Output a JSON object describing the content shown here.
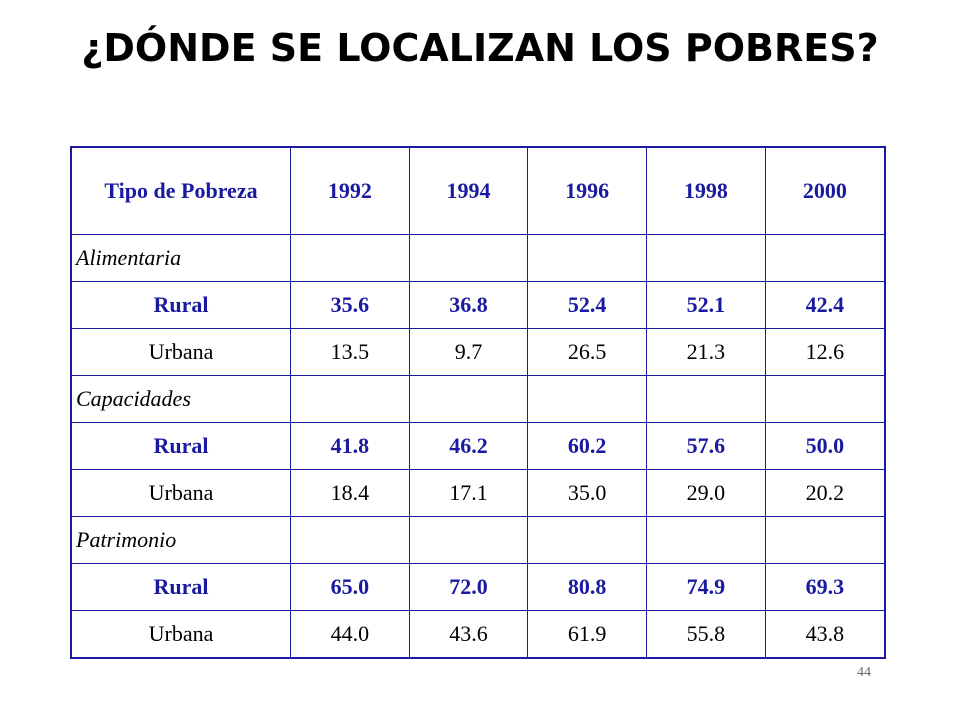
{
  "title": "¿DÓNDE SE LOCALIZAN LOS POBRES?",
  "table": {
    "headers": [
      "Tipo de Pobreza",
      "1992",
      "1994",
      "1996",
      "1998",
      "2000"
    ],
    "groups": [
      {
        "label": "Alimentaria",
        "rows": [
          {
            "label": "Rural",
            "values": [
              "35.6",
              "36.8",
              "52.4",
              "52.1",
              "42.4"
            ]
          },
          {
            "label": "Urbana",
            "values": [
              "13.5",
              "9.7",
              "26.5",
              "21.3",
              "12.6"
            ]
          }
        ]
      },
      {
        "label": "Capacidades",
        "rows": [
          {
            "label": "Rural",
            "values": [
              "41.8",
              "46.2",
              "60.2",
              "57.6",
              "50.0"
            ]
          },
          {
            "label": "Urbana",
            "values": [
              "18.4",
              "17.1",
              "35.0",
              "29.0",
              "20.2"
            ]
          }
        ]
      },
      {
        "label": "Patrimonio",
        "rows": [
          {
            "label": "Rural",
            "values": [
              "65.0",
              "72.0",
              "80.8",
              "74.9",
              "69.3"
            ]
          },
          {
            "label": "Urbana",
            "values": [
              "44.0",
              "43.6",
              "61.9",
              "55.8",
              "43.8"
            ]
          }
        ]
      }
    ]
  },
  "page_number": "44",
  "colors": {
    "accent_blue": "#1a1aa0",
    "text": "#000000",
    "background": "#ffffff"
  }
}
